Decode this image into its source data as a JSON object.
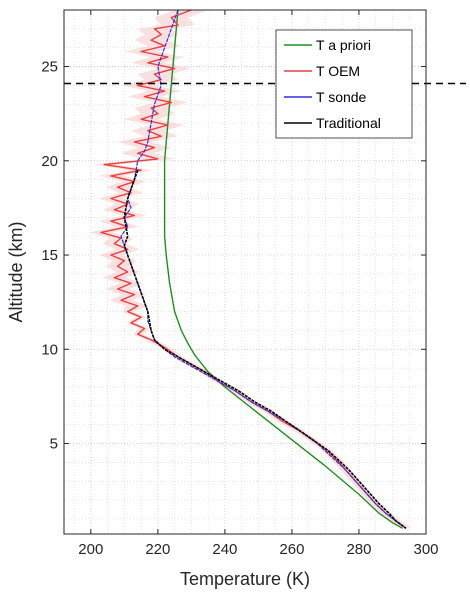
{
  "chart_data": {
    "type": "line",
    "xlabel": "Temperature (K)",
    "ylabel": "Altitude (km)",
    "xlim": [
      192,
      300
    ],
    "ylim": [
      0.2,
      28
    ],
    "xticks": [
      200,
      220,
      240,
      260,
      280,
      300
    ],
    "yticks": [
      5,
      10,
      15,
      20,
      25
    ],
    "grid": true,
    "minor_grid": true,
    "legend_position": "top-right",
    "hline": {
      "y": 24.1,
      "style": "dashed",
      "color": "#000000"
    },
    "series": [
      {
        "name": "T a priori",
        "color": "#1f8f1f",
        "points": [
          [
            226,
            28
          ],
          [
            224.5,
            25
          ],
          [
            223,
            22
          ],
          [
            222,
            20
          ],
          [
            222,
            16
          ],
          [
            222.5,
            15
          ],
          [
            223.5,
            13.5
          ],
          [
            225,
            12
          ],
          [
            227,
            11
          ],
          [
            229,
            10.3
          ],
          [
            231,
            9.7
          ],
          [
            235,
            8.8
          ],
          [
            240,
            8
          ],
          [
            250,
            6.6
          ],
          [
            260,
            5.2
          ],
          [
            270,
            3.8
          ],
          [
            280,
            2.3
          ],
          [
            286,
            1.3
          ],
          [
            290,
            0.8
          ],
          [
            293,
            0.5
          ]
        ]
      },
      {
        "name": "T OEM",
        "color": "#e8403f",
        "points": [
          [
            230,
            28
          ],
          [
            224,
            27.6
          ],
          [
            226,
            27.2
          ],
          [
            219,
            27
          ],
          [
            221,
            26.7
          ],
          [
            218,
            26.4
          ],
          [
            222,
            26.1
          ],
          [
            215,
            25.8
          ],
          [
            223,
            25.5
          ],
          [
            217,
            25.2
          ],
          [
            225,
            24.9
          ],
          [
            219,
            24.6
          ],
          [
            221,
            24.3
          ],
          [
            214,
            24
          ],
          [
            222,
            23.7
          ],
          [
            216,
            23.4
          ],
          [
            224,
            23.1
          ],
          [
            218,
            22.8
          ],
          [
            220,
            22.5
          ],
          [
            215,
            22.2
          ],
          [
            223,
            21.9
          ],
          [
            217,
            21.6
          ],
          [
            221,
            21.3
          ],
          [
            213,
            21
          ],
          [
            219,
            20.7
          ],
          [
            214,
            20.4
          ],
          [
            220,
            20.1
          ],
          [
            204,
            19.8
          ],
          [
            215,
            19.5
          ],
          [
            206,
            19.2
          ],
          [
            213,
            18.9
          ],
          [
            208,
            18.6
          ],
          [
            212,
            18.3
          ],
          [
            206,
            18
          ],
          [
            211,
            17.7
          ],
          [
            207,
            17.4
          ],
          [
            213,
            17.1
          ],
          [
            206,
            16.8
          ],
          [
            211,
            16.5
          ],
          [
            203,
            16.2
          ],
          [
            209,
            15.9
          ],
          [
            207,
            15.6
          ],
          [
            211,
            15.3
          ],
          [
            206,
            15
          ],
          [
            210,
            14.7
          ],
          [
            208,
            14.4
          ],
          [
            211,
            14.1
          ],
          [
            207,
            13.8
          ],
          [
            212,
            13.5
          ],
          [
            208,
            13.2
          ],
          [
            213,
            12.9
          ],
          [
            209,
            12.6
          ],
          [
            214,
            12.3
          ],
          [
            211,
            12
          ],
          [
            215,
            11.7
          ],
          [
            212,
            11.4
          ],
          [
            216,
            11.1
          ],
          [
            214,
            10.8
          ],
          [
            218,
            10.5
          ],
          [
            222,
            10.1
          ],
          [
            226,
            9.6
          ],
          [
            230,
            9.2
          ],
          [
            234,
            8.8
          ],
          [
            238,
            8.3
          ],
          [
            243,
            7.8
          ],
          [
            248,
            7.2
          ],
          [
            253,
            6.7
          ],
          [
            257,
            6.2
          ],
          [
            262,
            5.7
          ],
          [
            266,
            5.2
          ],
          [
            270,
            4.7
          ],
          [
            273,
            4.2
          ],
          [
            276,
            3.6
          ],
          [
            279,
            3
          ],
          [
            282,
            2.4
          ],
          [
            285,
            1.8
          ],
          [
            288,
            1.3
          ],
          [
            291,
            0.9
          ],
          [
            294,
            0.5
          ]
        ]
      },
      {
        "name": "T sonde",
        "color": "#3030e0",
        "points": [
          [
            226,
            28
          ],
          [
            224,
            27
          ],
          [
            222,
            26
          ],
          [
            220,
            25
          ],
          [
            221,
            24
          ],
          [
            219,
            23
          ],
          [
            218,
            22
          ],
          [
            217,
            21
          ],
          [
            216,
            20.5
          ],
          [
            214,
            20
          ],
          [
            213,
            19
          ],
          [
            212,
            18.5
          ],
          [
            211,
            18
          ],
          [
            212,
            17.5
          ],
          [
            210,
            17
          ],
          [
            211,
            16.5
          ],
          [
            209,
            16
          ],
          [
            210,
            15.5
          ],
          [
            211,
            15
          ],
          [
            212,
            14.5
          ],
          [
            213,
            14
          ],
          [
            214,
            13.5
          ],
          [
            215,
            13
          ],
          [
            216,
            12.5
          ],
          [
            217,
            12
          ],
          [
            217,
            11.5
          ],
          [
            218,
            11
          ],
          [
            219,
            10.5
          ],
          [
            222,
            10
          ],
          [
            225,
            9.6
          ],
          [
            229,
            9.2
          ],
          [
            233,
            8.8
          ],
          [
            238,
            8.3
          ],
          [
            243,
            7.8
          ],
          [
            248,
            7.2
          ],
          [
            253,
            6.7
          ],
          [
            258,
            6.2
          ],
          [
            263,
            5.6
          ],
          [
            267,
            5.1
          ],
          [
            270,
            4.6
          ],
          [
            273,
            4.1
          ],
          [
            276,
            3.6
          ],
          [
            279,
            3
          ],
          [
            282,
            2.4
          ],
          [
            285,
            1.8
          ],
          [
            288,
            1.3
          ],
          [
            291,
            0.9
          ],
          [
            294,
            0.5
          ]
        ]
      },
      {
        "name": "Traditional",
        "color": "#000000",
        "points": [
          [
            214,
            19.5
          ],
          [
            212,
            18.5
          ],
          [
            211,
            18
          ],
          [
            210,
            17
          ],
          [
            211,
            16
          ],
          [
            210,
            15.5
          ],
          [
            212,
            14.5
          ],
          [
            214,
            13.5
          ],
          [
            215,
            13
          ],
          [
            216,
            12.5
          ],
          [
            217,
            12
          ],
          [
            218,
            11
          ],
          [
            219,
            10.5
          ],
          [
            222,
            10
          ],
          [
            226,
            9.6
          ],
          [
            230,
            9.2
          ],
          [
            234,
            8.8
          ],
          [
            239,
            8.3
          ],
          [
            244,
            7.8
          ],
          [
            249,
            7.2
          ],
          [
            254,
            6.7
          ],
          [
            258,
            6.2
          ],
          [
            263,
            5.6
          ],
          [
            267,
            5.1
          ],
          [
            271,
            4.6
          ],
          [
            274,
            4.1
          ],
          [
            277,
            3.6
          ],
          [
            280,
            3
          ],
          [
            283,
            2.4
          ],
          [
            286,
            1.8
          ],
          [
            289,
            1.3
          ],
          [
            291,
            0.9
          ],
          [
            294,
            0.5
          ]
        ]
      }
    ]
  }
}
